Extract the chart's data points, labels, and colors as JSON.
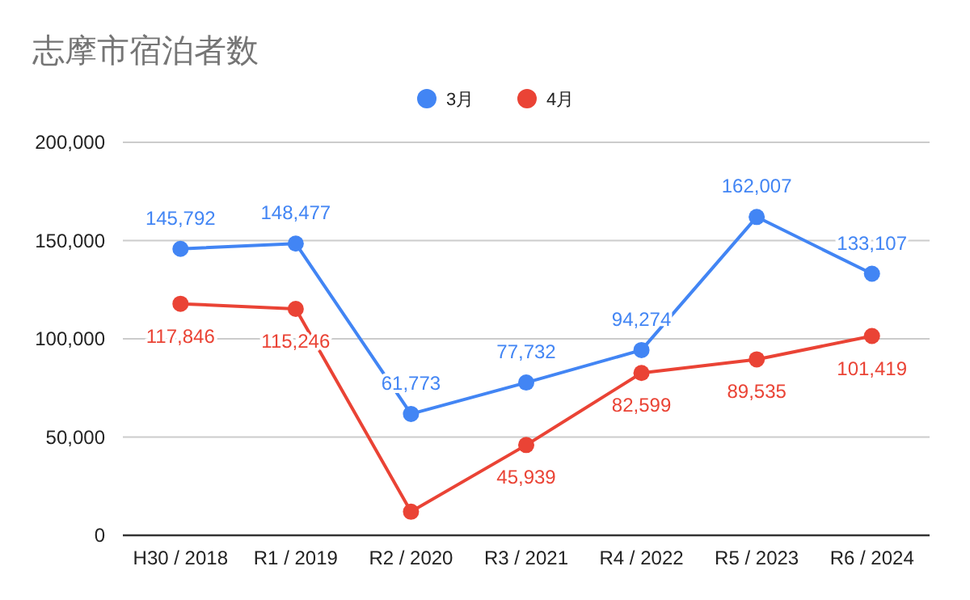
{
  "chart_data": {
    "type": "line",
    "title": "志摩市宿泊者数",
    "categories": [
      "H30 / 2018",
      "R1 / 2019",
      "R2 / 2020",
      "R3 / 2021",
      "R4 / 2022",
      "R5 / 2023",
      "R6 / 2024"
    ],
    "series": [
      {
        "name": "3月",
        "color": "#4285f4",
        "values": [
          145792,
          148477,
          61773,
          77732,
          94274,
          162007,
          133107
        ],
        "value_labels": [
          "145,792",
          "148,477",
          "61,773",
          "77,732",
          "94,274",
          "162,007",
          "133,107"
        ]
      },
      {
        "name": "4月",
        "color": "#ea4335",
        "values": [
          117846,
          115246,
          12000,
          45939,
          82599,
          89535,
          101419
        ],
        "value_labels": [
          "117,846",
          "115,246",
          null,
          "45,939",
          "82,599",
          "89,535",
          "101,419"
        ]
      }
    ],
    "ylim": [
      0,
      200000
    ],
    "yticks": [
      {
        "value": 0,
        "label": "0"
      },
      {
        "value": 50000,
        "label": "50,000"
      },
      {
        "value": 100000,
        "label": "100,000"
      },
      {
        "value": 150000,
        "label": "150,000"
      },
      {
        "value": 200000,
        "label": "200,000"
      }
    ],
    "grid": "y",
    "legend": "top",
    "marker": "circle",
    "line_style": "solid"
  }
}
